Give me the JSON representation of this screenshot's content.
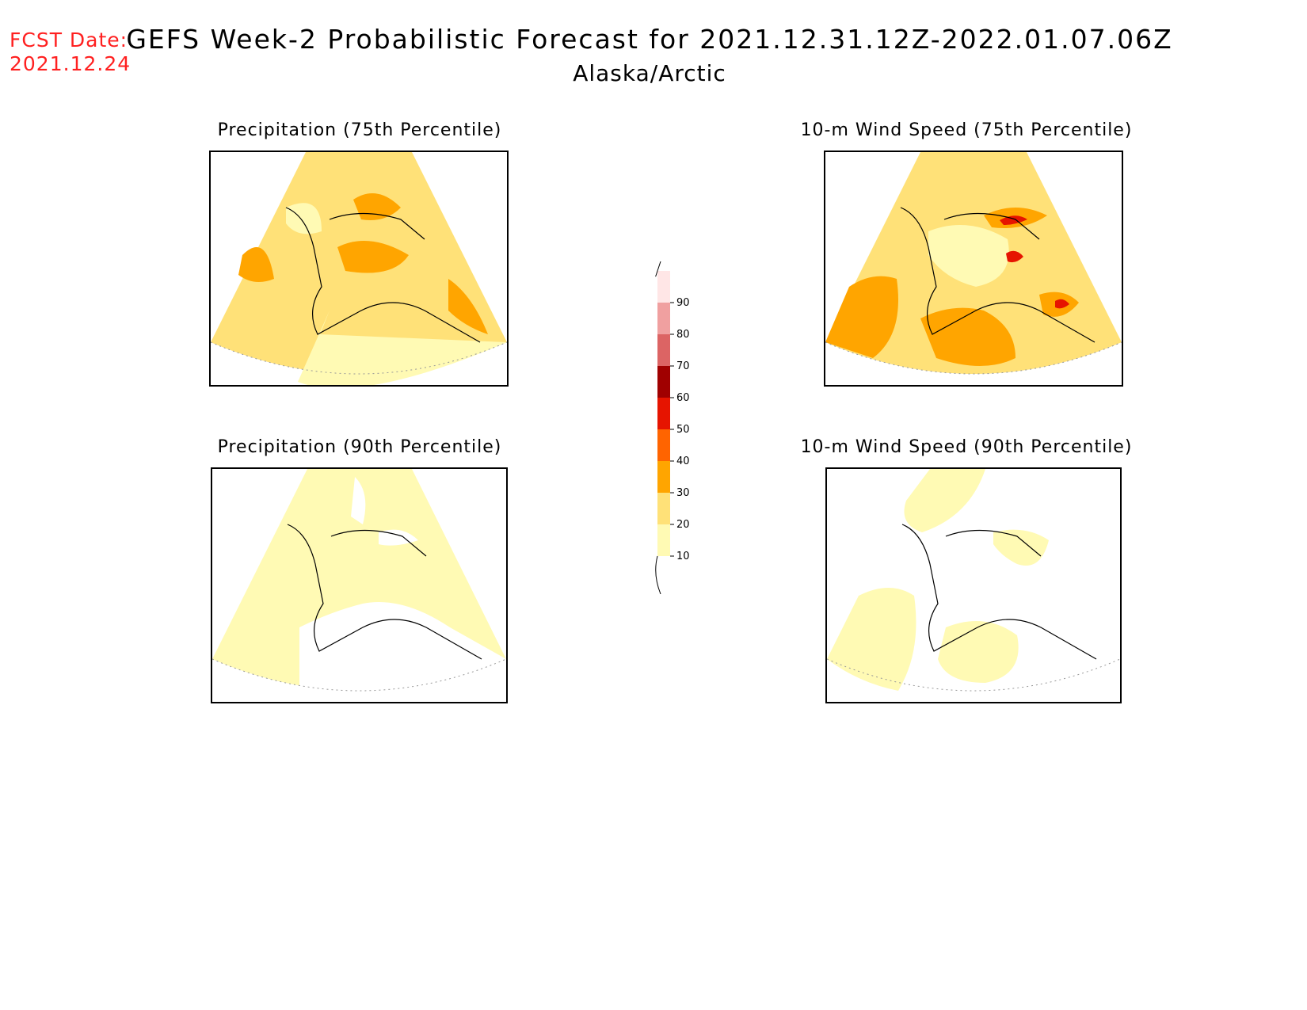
{
  "fcst_date": {
    "label": "FCST Date:",
    "value": "2021.12.24"
  },
  "title": "GEFS Week-2 Probabilistic Forecast for 2021.12.31.12Z-2022.01.07.06Z",
  "subtitle": "Alaska/Arctic",
  "panels": [
    {
      "title": "Precipitation (75th Percentile)"
    },
    {
      "title": "10-m Wind Speed (75th Percentile)"
    },
    {
      "title": "Precipitation (90th Percentile)"
    },
    {
      "title": "10-m Wind Speed (90th Percentile)"
    }
  ],
  "colorbar": {
    "labels": [
      "10",
      "20",
      "30",
      "40",
      "50",
      "60",
      "70",
      "80",
      "90"
    ],
    "colors": [
      "#fffab4",
      "#ffe178",
      "#ffa500",
      "#ff6400",
      "#e61400",
      "#a00000",
      "#dc6464",
      "#f0a0a0",
      "#ffe6e6"
    ]
  }
}
